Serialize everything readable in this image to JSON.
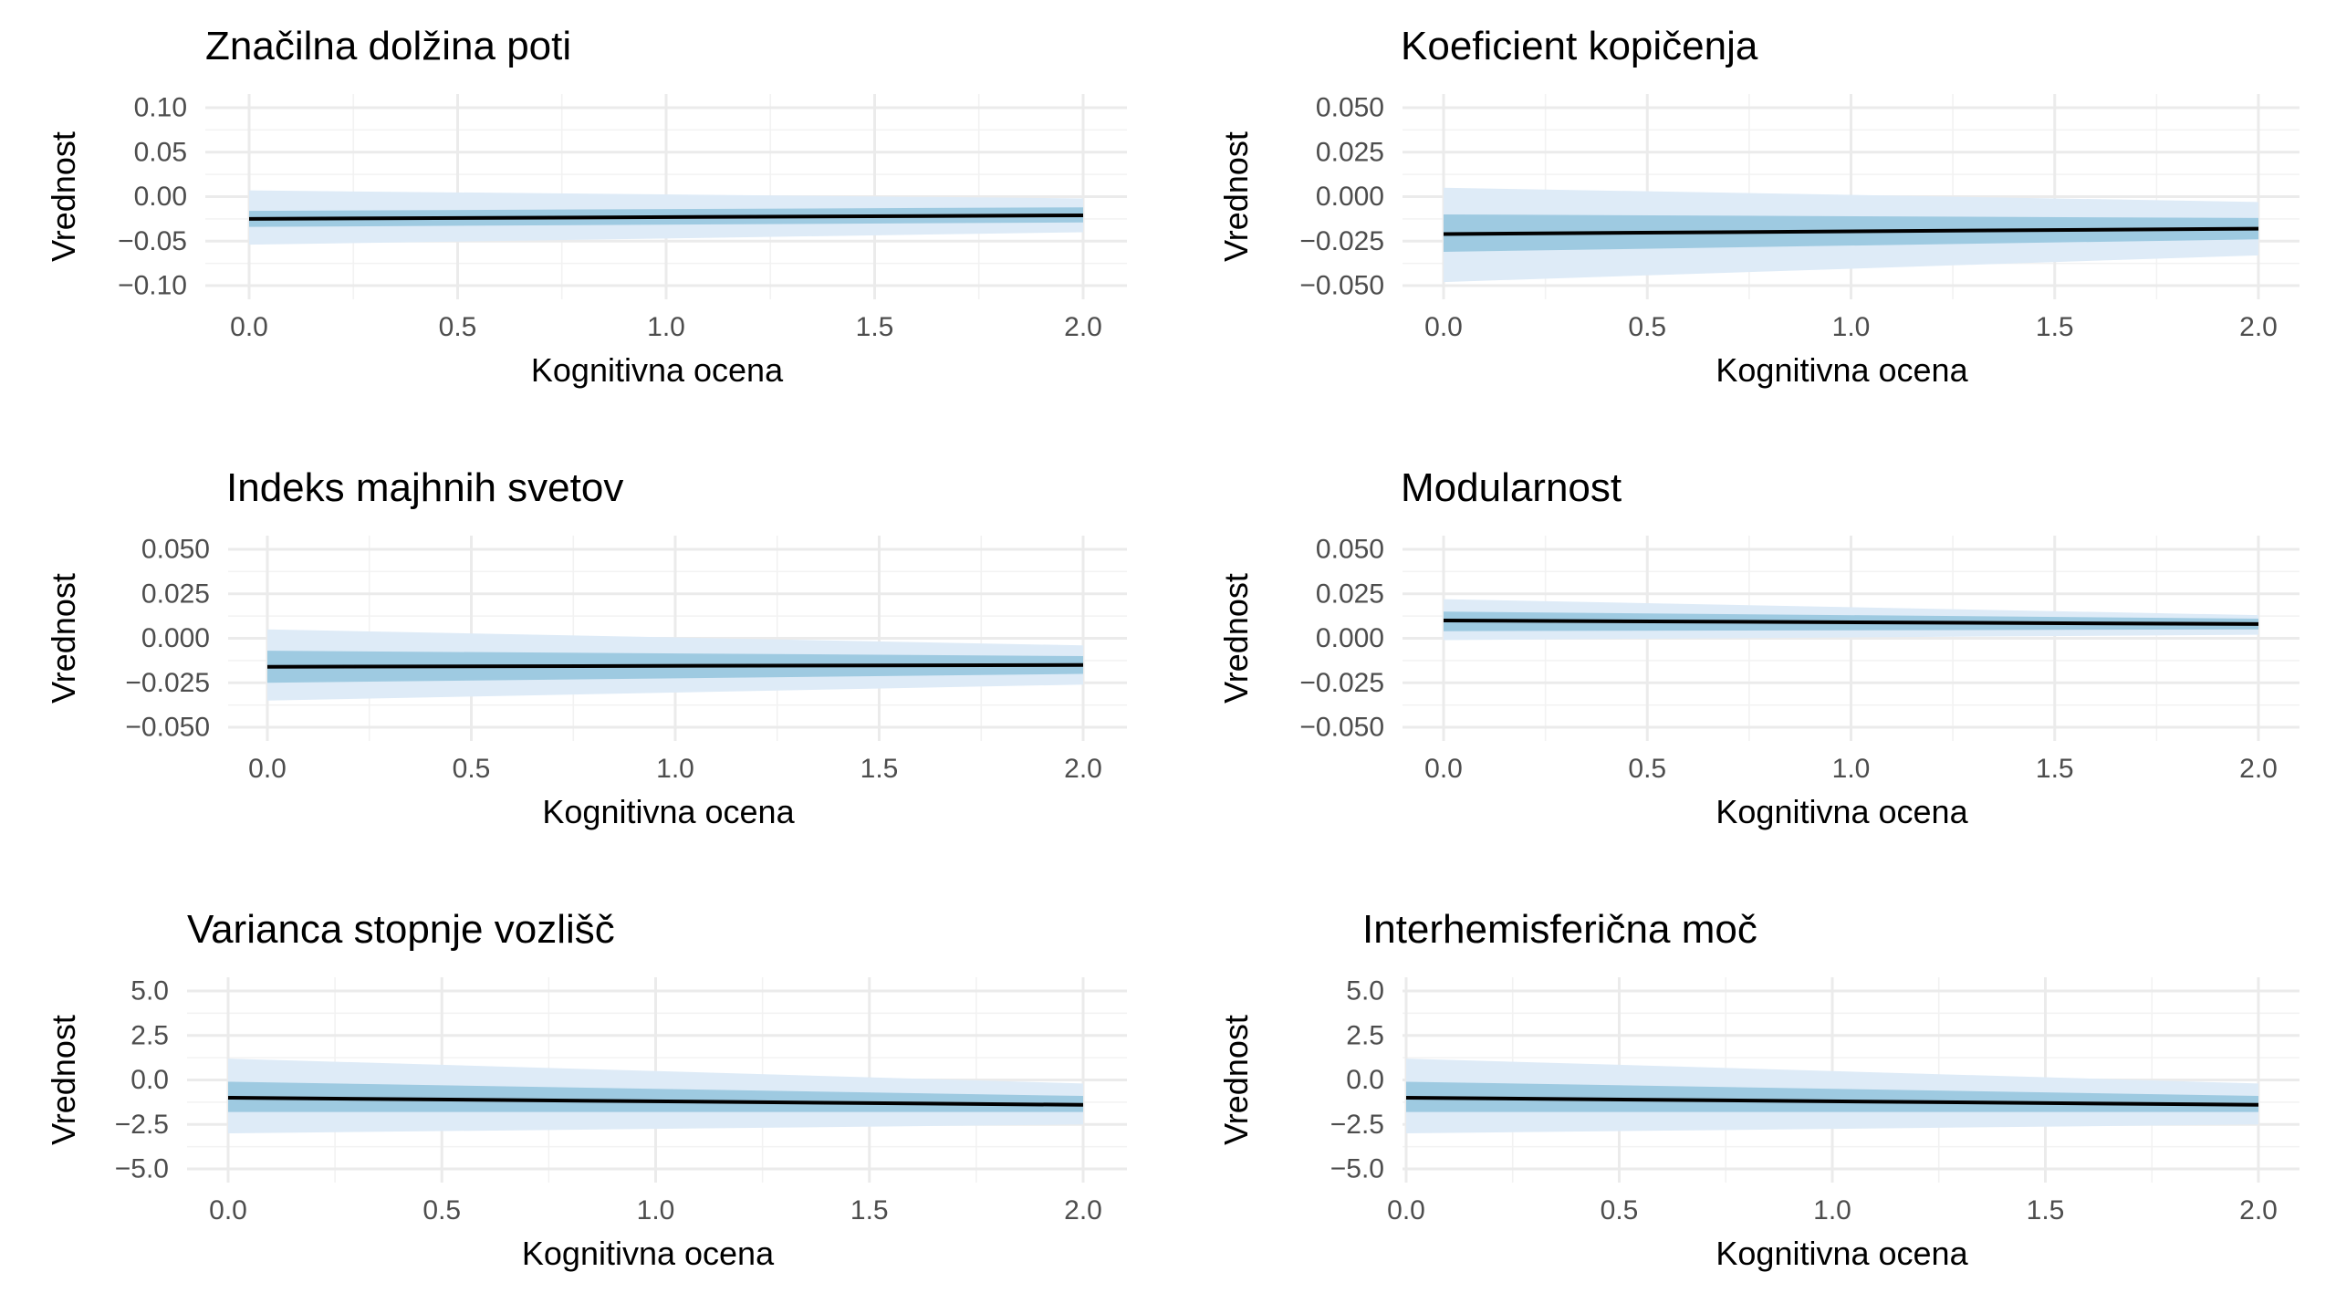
{
  "figure": {
    "colors": {
      "background": "#ffffff",
      "grid_major": "#ebebeb",
      "grid_minor": "#f2f2f2",
      "band_outer": "#deebf7",
      "band_inner": "#9ecae1",
      "line": "#000000",
      "tick_text": "#4d4d4d"
    }
  },
  "chart_data": [
    {
      "type": "line",
      "title": "Značilna dolžina poti",
      "xlabel": "Kognitivna ocena",
      "ylabel": "Vrednost",
      "xlim": [
        0,
        2
      ],
      "ylim": [
        -0.1,
        0.1
      ],
      "x_ticks": [
        "0.0",
        "0.5",
        "1.0",
        "1.5",
        "2.0"
      ],
      "y_ticks": [
        "0.10",
        "0.05",
        "0.00",
        "−0.05",
        "−0.10"
      ],
      "grid": true,
      "x": [
        0,
        2
      ],
      "series": [
        {
          "values": [
            -0.025,
            -0.021
          ],
          "inner_lower": [
            -0.034,
            -0.029
          ],
          "inner_upper": [
            -0.016,
            -0.012
          ],
          "outer_lower": [
            -0.054,
            -0.04
          ],
          "outer_upper": [
            0.007,
            -0.002
          ]
        }
      ]
    },
    {
      "type": "line",
      "title": "Koeficient kopičenja",
      "xlabel": "Kognitivna ocena",
      "ylabel": "Vrednost",
      "xlim": [
        0,
        2
      ],
      "ylim": [
        -0.05,
        0.05
      ],
      "x_ticks": [
        "0.0",
        "0.5",
        "1.0",
        "1.5",
        "2.0"
      ],
      "y_ticks": [
        "0.050",
        "0.025",
        "0.000",
        "−0.025",
        "−0.050"
      ],
      "grid": true,
      "x": [
        0,
        2
      ],
      "series": [
        {
          "values": [
            -0.021,
            -0.018
          ],
          "inner_lower": [
            -0.031,
            -0.024
          ],
          "inner_upper": [
            -0.01,
            -0.012
          ],
          "outer_lower": [
            -0.048,
            -0.033
          ],
          "outer_upper": [
            0.005,
            -0.003
          ]
        }
      ]
    },
    {
      "type": "line",
      "title": "Indeks majhnih svetov",
      "xlabel": "Kognitivna ocena",
      "ylabel": "Vrednost",
      "xlim": [
        0,
        2
      ],
      "ylim": [
        -0.05,
        0.05
      ],
      "x_ticks": [
        "0.0",
        "0.5",
        "1.0",
        "1.5",
        "2.0"
      ],
      "y_ticks": [
        "0.050",
        "0.025",
        "0.000",
        "−0.025",
        "−0.050"
      ],
      "grid": true,
      "x": [
        0,
        2
      ],
      "series": [
        {
          "values": [
            -0.016,
            -0.015
          ],
          "inner_lower": [
            -0.025,
            -0.02
          ],
          "inner_upper": [
            -0.007,
            -0.01
          ],
          "outer_lower": [
            -0.035,
            -0.026
          ],
          "outer_upper": [
            0.005,
            -0.004
          ]
        }
      ]
    },
    {
      "type": "line",
      "title": "Modularnost",
      "xlabel": "Kognitivna ocena",
      "ylabel": "Vrednost",
      "xlim": [
        0,
        2
      ],
      "ylim": [
        -0.05,
        0.05
      ],
      "x_ticks": [
        "0.0",
        "0.5",
        "1.0",
        "1.5",
        "2.0"
      ],
      "y_ticks": [
        "0.050",
        "0.025",
        "0.000",
        "−0.025",
        "−0.050"
      ],
      "grid": true,
      "x": [
        0,
        2
      ],
      "series": [
        {
          "values": [
            0.01,
            0.008
          ],
          "inner_lower": [
            0.004,
            0.005
          ],
          "inner_upper": [
            0.015,
            0.011
          ],
          "outer_lower": [
            -0.001,
            0.002
          ],
          "outer_upper": [
            0.022,
            0.013
          ]
        }
      ]
    },
    {
      "type": "line",
      "title": "Varianca stopnje vozlišč",
      "xlabel": "Kognitivna ocena",
      "ylabel": "Vrednost",
      "xlim": [
        0,
        2
      ],
      "ylim": [
        -5,
        5
      ],
      "x_ticks": [
        "0.0",
        "0.5",
        "1.0",
        "1.5",
        "2.0"
      ],
      "y_ticks": [
        "5.0",
        "2.5",
        "0.0",
        "−2.5",
        "−5.0"
      ],
      "grid": true,
      "x": [
        0,
        2
      ],
      "series": [
        {
          "values": [
            -1.0,
            -1.4
          ],
          "inner_lower": [
            -1.8,
            -1.8
          ],
          "inner_upper": [
            -0.1,
            -0.9
          ],
          "outer_lower": [
            -3.0,
            -2.5
          ],
          "outer_upper": [
            1.2,
            -0.2
          ]
        }
      ]
    },
    {
      "type": "line",
      "title": "Interhemisferična moč",
      "xlabel": "Kognitivna ocena",
      "ylabel": "Vrednost",
      "xlim": [
        0,
        2
      ],
      "ylim": [
        -5,
        5
      ],
      "x_ticks": [
        "0.0",
        "0.5",
        "1.0",
        "1.5",
        "2.0"
      ],
      "y_ticks": [
        "5.0",
        "2.5",
        "0.0",
        "−2.5",
        "−5.0"
      ],
      "grid": true,
      "x": [
        0,
        2
      ],
      "series": [
        {
          "values": [
            -1.0,
            -1.4
          ],
          "inner_lower": [
            -1.8,
            -1.8
          ],
          "inner_upper": [
            -0.1,
            -0.9
          ],
          "outer_lower": [
            -3.0,
            -2.5
          ],
          "outer_upper": [
            1.2,
            -0.2
          ]
        }
      ]
    }
  ]
}
